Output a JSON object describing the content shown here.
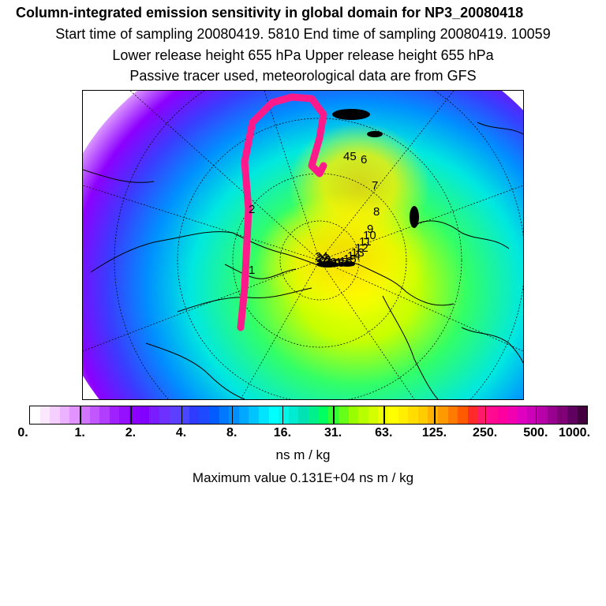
{
  "header": {
    "title": "Column-integrated emission sensitivity in global domain for NP3_20080418",
    "sampling": "Start time of sampling 20080419.  5810     End time of sampling 20080419. 10059",
    "release": "Lower release height  655 hPa        Upper release height  655 hPa",
    "tracer": "Passive tracer used, meteorological data are from GFS"
  },
  "map": {
    "projection": "north-polar-stereographic",
    "trajectory_labels": [
      "1",
      "2",
      "45",
      "6",
      "7",
      "8",
      "9",
      "10",
      "11",
      "12",
      "13",
      "14",
      "15",
      "16",
      "17",
      "18",
      "19",
      "20",
      "21",
      "22",
      "23",
      "24"
    ],
    "trajectory_color": "#ff1a8c",
    "coastline_color": "#000000"
  },
  "colorbar": {
    "tick_labels": [
      "0.",
      "1.",
      "2.",
      "4.",
      "8.",
      "16.",
      "31.",
      "63.",
      "125.",
      "250.",
      "500.",
      "1000."
    ],
    "colors": [
      "#ffffff",
      "#fbe8ff",
      "#f4cfff",
      "#ebb3ff",
      "#e194ff",
      "#d175ff",
      "#c257ff",
      "#b13dff",
      "#a020ff",
      "#9510ff",
      "#8c00ff",
      "#8200ff",
      "#7a1cff",
      "#6e30ff",
      "#5c3fff",
      "#4a46ff",
      "#2f3cff",
      "#1f49ff",
      "#005cff",
      "#0078ff",
      "#0090ff",
      "#00a8ff",
      "#00c4ff",
      "#00e4ff",
      "#00ffff",
      "#00f6e8",
      "#00ecd2",
      "#00e2b4",
      "#00f08c",
      "#00ff60",
      "#33ff33",
      "#66ff1a",
      "#99ff00",
      "#b8ff00",
      "#d4ff00",
      "#eeff00",
      "#ffff00",
      "#ffee00",
      "#ffdd00",
      "#ffcc00",
      "#ffb000",
      "#ff9900",
      "#ff7a00",
      "#ff5a00",
      "#ff2a2a",
      "#ff1a6a",
      "#ff0a90",
      "#ff00a0",
      "#f000b0",
      "#e000c0",
      "#cc00b8",
      "#b800a8",
      "#990090",
      "#800078",
      "#600060",
      "#450040"
    ],
    "units": "ns m / kg"
  },
  "footer": {
    "maximum": "Maximum value  0.131E+04 ns m / kg"
  }
}
